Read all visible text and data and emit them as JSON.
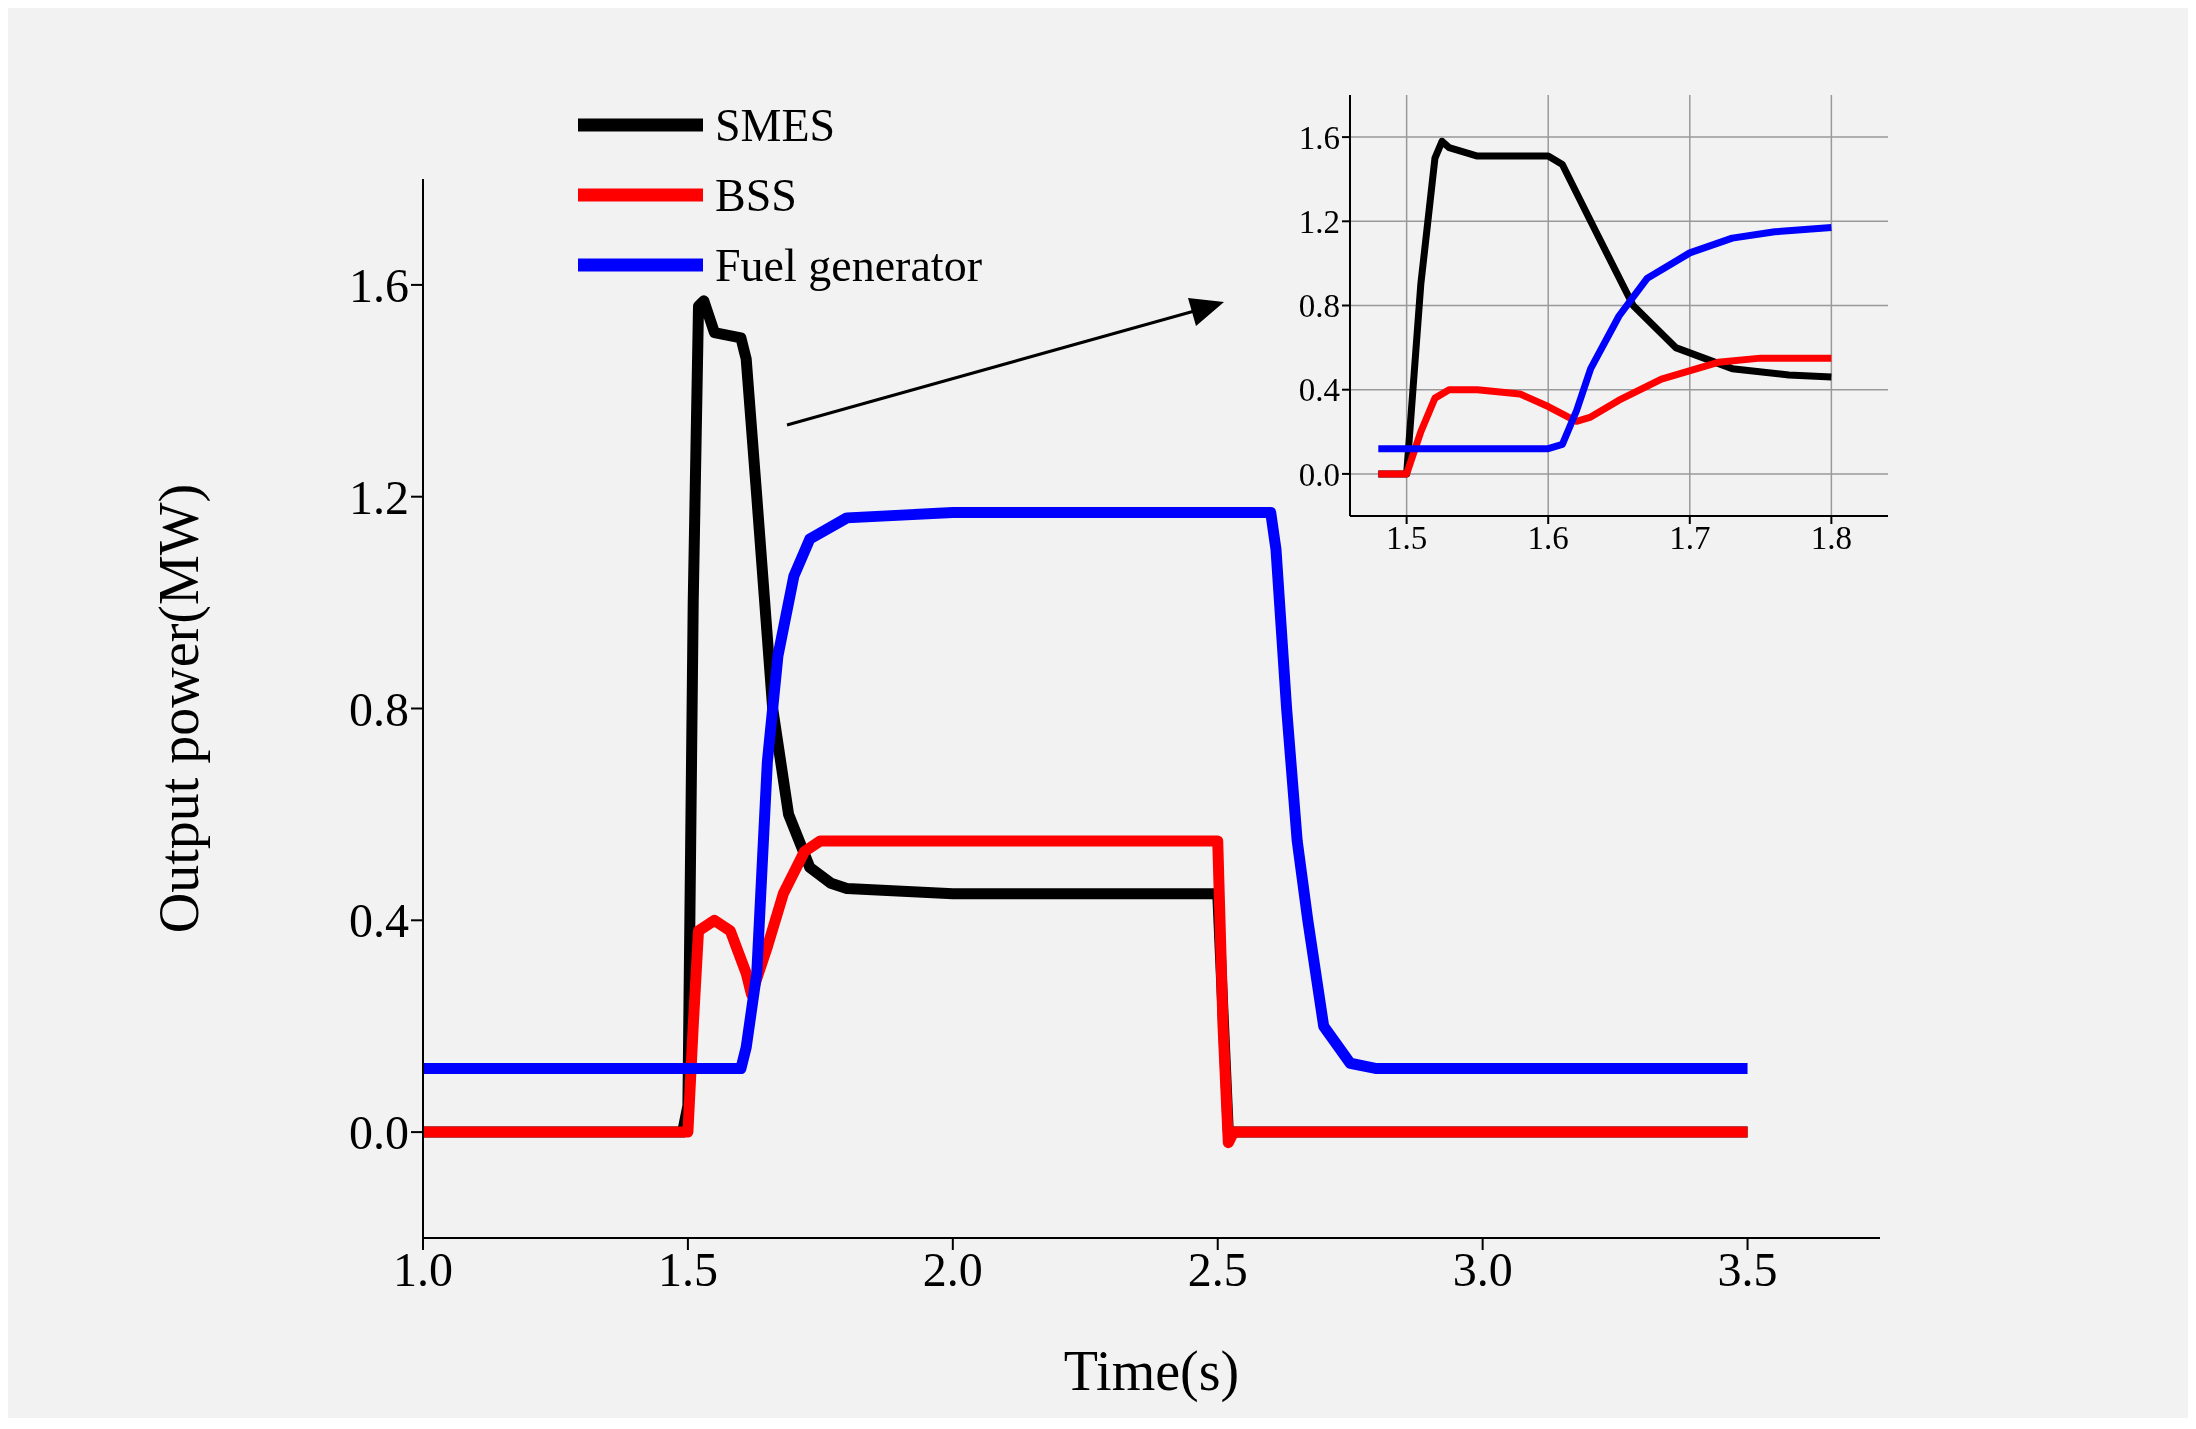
{
  "chart_data": [
    {
      "type": "line",
      "xlabel": "Time(s)",
      "ylabel": "Output power(MW)",
      "xlim": [
        1.0,
        3.75
      ],
      "ylim": [
        -0.2,
        1.8
      ],
      "xticks": [
        {
          "value": 1,
          "label": "1.0"
        },
        {
          "value": 1.5,
          "label": "1.5"
        },
        {
          "value": 2,
          "label": "2.0"
        },
        {
          "value": 2.5,
          "label": "2.5"
        },
        {
          "value": 3,
          "label": "3.0"
        },
        {
          "value": 3.5,
          "label": "3.5"
        }
      ],
      "yticks": [
        {
          "value": 0,
          "label": "0.0"
        },
        {
          "value": 0.4,
          "label": "0.4"
        },
        {
          "value": 0.8,
          "label": "0.8"
        },
        {
          "value": 1.2,
          "label": "1.2"
        },
        {
          "value": 1.6,
          "label": "1.6"
        }
      ],
      "grid": false,
      "legend": "top left",
      "marker": "none",
      "line_style": "solid",
      "series": [
        {
          "name": "SMES",
          "color": "#000000",
          "x": [
            1.0,
            1.49,
            1.5,
            1.51,
            1.52,
            1.53,
            1.55,
            1.6,
            1.61,
            1.63,
            1.66,
            1.69,
            1.73,
            1.77,
            1.8,
            2.0,
            2.49,
            2.5,
            2.52,
            3.0,
            3.5
          ],
          "values": [
            0,
            0,
            0.05,
            1.0,
            1.56,
            1.57,
            1.51,
            1.5,
            1.46,
            1.2,
            0.8,
            0.6,
            0.5,
            0.47,
            0.46,
            0.45,
            0.45,
            0.45,
            0,
            0,
            0
          ]
        },
        {
          "name": "BSS",
          "color": "#ff0000",
          "x": [
            1.0,
            1.5,
            1.51,
            1.52,
            1.55,
            1.58,
            1.61,
            1.62,
            1.65,
            1.68,
            1.72,
            1.75,
            1.8,
            2.0,
            2.5,
            2.51,
            2.52,
            2.53,
            3.0,
            3.5
          ],
          "values": [
            0,
            0,
            0.2,
            0.38,
            0.4,
            0.38,
            0.3,
            0.26,
            0.35,
            0.45,
            0.53,
            0.55,
            0.55,
            0.55,
            0.55,
            0.2,
            -0.02,
            0,
            0,
            0
          ]
        },
        {
          "name": "Fuel generator",
          "color": "#0000ff",
          "x": [
            1.0,
            1.6,
            1.61,
            1.63,
            1.65,
            1.67,
            1.7,
            1.73,
            1.8,
            2.0,
            2.6,
            2.61,
            2.63,
            2.65,
            2.67,
            2.7,
            2.75,
            2.8,
            3.0,
            3.5
          ],
          "values": [
            0.12,
            0.12,
            0.16,
            0.3,
            0.7,
            0.9,
            1.05,
            1.12,
            1.16,
            1.17,
            1.17,
            1.1,
            0.8,
            0.55,
            0.4,
            0.2,
            0.13,
            0.12,
            0.12,
            0.12
          ]
        }
      ]
    },
    {
      "type": "line",
      "xlim": [
        1.46,
        1.84
      ],
      "ylim": [
        -0.2,
        1.8
      ],
      "xticks": [
        1.5,
        1.6,
        1.7,
        1.8
      ],
      "yticks": [
        {
          "value": 0,
          "label": "0.0"
        },
        {
          "value": 0.4,
          "label": "0.4"
        },
        {
          "value": 0.8,
          "label": "0.8"
        },
        {
          "value": 1.2,
          "label": "1.2"
        },
        {
          "value": 1.6,
          "label": "1.6"
        }
      ],
      "grid": true,
      "legend": false,
      "marker": "none",
      "line_style": "solid",
      "series": [
        {
          "color": "#000000",
          "x": [
            1.48,
            1.5,
            1.51,
            1.52,
            1.525,
            1.53,
            1.55,
            1.6,
            1.61,
            1.63,
            1.66,
            1.69,
            1.73,
            1.77,
            1.8
          ],
          "values": [
            0,
            0,
            0.9,
            1.5,
            1.58,
            1.55,
            1.51,
            1.51,
            1.47,
            1.2,
            0.8,
            0.6,
            0.5,
            0.47,
            0.46
          ]
        },
        {
          "color": "#ff0000",
          "x": [
            1.48,
            1.5,
            1.51,
            1.52,
            1.53,
            1.55,
            1.58,
            1.6,
            1.62,
            1.63,
            1.65,
            1.68,
            1.72,
            1.75,
            1.8
          ],
          "values": [
            0,
            0,
            0.2,
            0.36,
            0.4,
            0.4,
            0.38,
            0.32,
            0.25,
            0.27,
            0.35,
            0.45,
            0.53,
            0.55,
            0.55
          ]
        },
        {
          "color": "#0000ff",
          "x": [
            1.48,
            1.6,
            1.61,
            1.62,
            1.63,
            1.65,
            1.67,
            1.7,
            1.73,
            1.76,
            1.8
          ],
          "values": [
            0.12,
            0.12,
            0.14,
            0.3,
            0.5,
            0.75,
            0.93,
            1.05,
            1.12,
            1.15,
            1.17
          ]
        }
      ]
    }
  ]
}
